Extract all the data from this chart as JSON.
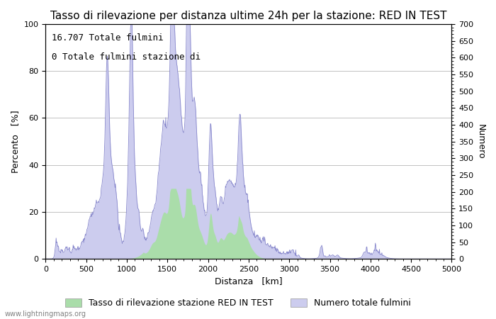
{
  "title": "Tasso di rilevazione per distanza ultime 24h per la stazione: RED IN TEST",
  "annotation_line1": "16.707 Totale fulmini",
  "annotation_line2": "0 Totale fulmini stazione di",
  "xlabel": "Distanza   [km]",
  "ylabel_left": "Percento   [%]",
  "ylabel_right": "Numero",
  "xlim": [
    0,
    5000
  ],
  "ylim_left": [
    0,
    100
  ],
  "ylim_right": [
    0,
    700
  ],
  "xticks": [
    0,
    500,
    1000,
    1500,
    2000,
    2500,
    3000,
    3500,
    4000,
    4500,
    5000
  ],
  "yticks_left": [
    0,
    20,
    40,
    60,
    80,
    100
  ],
  "yticks_right": [
    0,
    50,
    100,
    150,
    200,
    250,
    300,
    350,
    400,
    450,
    500,
    550,
    600,
    650,
    700
  ],
  "legend_label_green": "Tasso di rilevazione stazione RED IN TEST",
  "legend_label_blue": "Numero totale fulmini",
  "watermark": "www.lightningmaps.org",
  "line_color": "#8888cc",
  "fill_blue_color": "#ccccee",
  "fill_green_color": "#aaddaa",
  "bg_color": "#ffffff",
  "grid_color": "#aaaaaa",
  "title_fontsize": 11,
  "axis_fontsize": 9,
  "tick_fontsize": 8,
  "annotation_fontsize": 9
}
